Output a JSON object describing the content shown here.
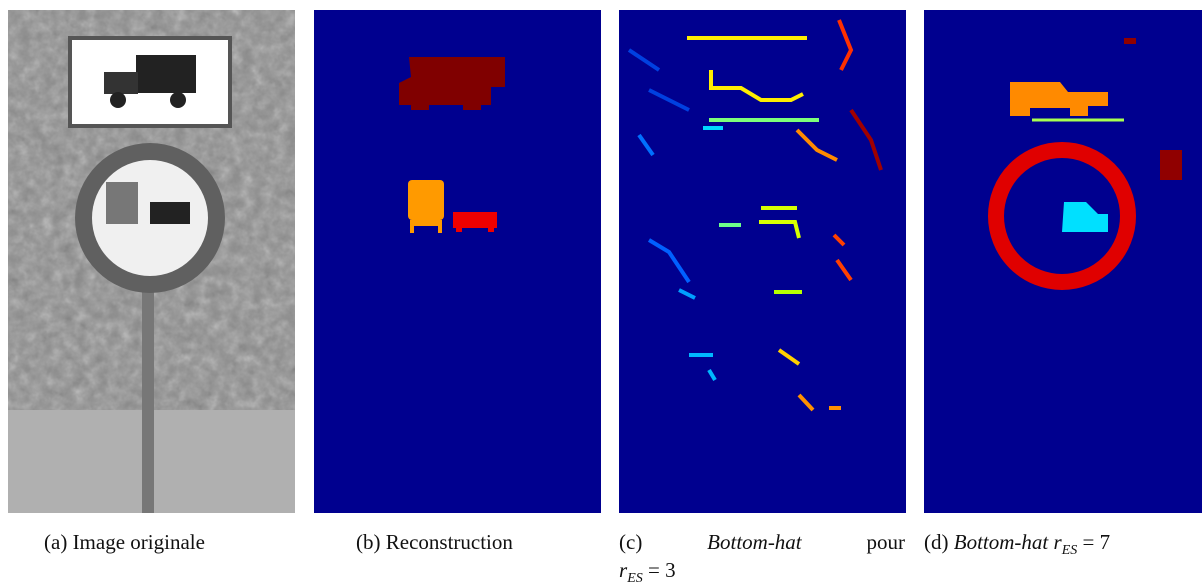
{
  "figure": {
    "panels": [
      {
        "label": "(a)",
        "caption": "Image originale"
      },
      {
        "label": "(b)",
        "caption": "Reconstruction"
      },
      {
        "label": "(c)",
        "caption_italic": "Bottom-hat",
        "caption": "pour",
        "math_var": "r",
        "math_sub": "ES",
        "math_rest": "= 3"
      },
      {
        "label": "(d)",
        "caption_italic": "Bottom-hat",
        "math_var": "r",
        "math_sub": "ES",
        "math_rest": "= 7"
      }
    ]
  }
}
